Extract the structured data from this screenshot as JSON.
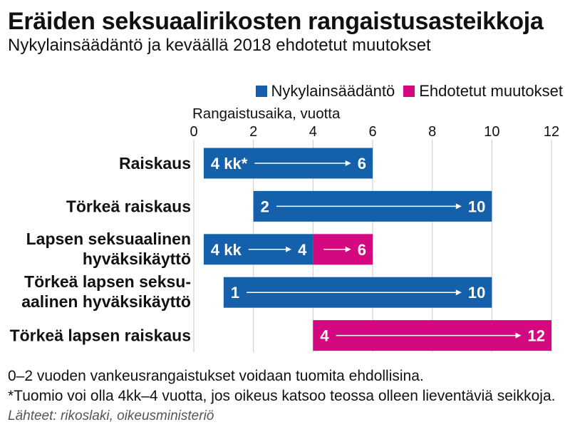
{
  "chart_data": {
    "type": "bar",
    "orientation": "horizontal",
    "bar_style": "range",
    "title": "Eräiden seksuaalirikosten rangaistusasteikkoja",
    "subtitle": "Nykylainsäädäntö ja keväällä 2018 ehdotetut muutokset",
    "xlabel": "Rangaistusaika, vuotta",
    "xlim": [
      0,
      12
    ],
    "xticks": [
      0,
      2,
      4,
      6,
      8,
      10,
      12
    ],
    "x_axis_position": "top",
    "grid": true,
    "legend_position": "top-right",
    "series": [
      {
        "name": "Nykylainsäädäntö",
        "color": "#1560ab"
      },
      {
        "name": "Ehdotetut muutokset",
        "color": "#d4087f"
      }
    ],
    "rows": [
      {
        "label_lines": [
          "Raiskaus"
        ],
        "segments": [
          {
            "series": 0,
            "start": 0.333,
            "end": 6,
            "start_label": "4 kk*",
            "end_label": "6"
          }
        ]
      },
      {
        "label_lines": [
          "Törkeä raiskaus"
        ],
        "segments": [
          {
            "series": 0,
            "start": 2,
            "end": 10,
            "start_label": "2",
            "end_label": "10"
          }
        ]
      },
      {
        "label_lines": [
          "Lapsen seksuaalinen",
          "hyväksikäyttö"
        ],
        "segments": [
          {
            "series": 0,
            "start": 0.333,
            "end": 4,
            "start_label": "4 kk",
            "end_label": "4"
          },
          {
            "series": 1,
            "start": 4,
            "end": 6,
            "end_label": "6"
          }
        ]
      },
      {
        "label_lines": [
          "Törkeä lapsen seksu-",
          "aalinen hyväksikäyttö"
        ],
        "segments": [
          {
            "series": 0,
            "start": 1,
            "end": 10,
            "start_label": "1",
            "end_label": "10"
          }
        ]
      },
      {
        "label_lines": [
          "Törkeä lapsen raiskaus"
        ],
        "segments": [
          {
            "series": 1,
            "start": 4,
            "end": 12,
            "start_label": "4",
            "end_label": "12"
          }
        ]
      }
    ],
    "notes": [
      "0–2 vuoden vankeusrangaistukset voidaan tuomita ehdollisina.",
      "*Tuomio voi olla 4kk–4 vuotta, jos oikeus katsoo teossa olleen lieventäviä seikkoja."
    ],
    "source": "Lähteet: rikoslaki, oikeusministeriö"
  }
}
